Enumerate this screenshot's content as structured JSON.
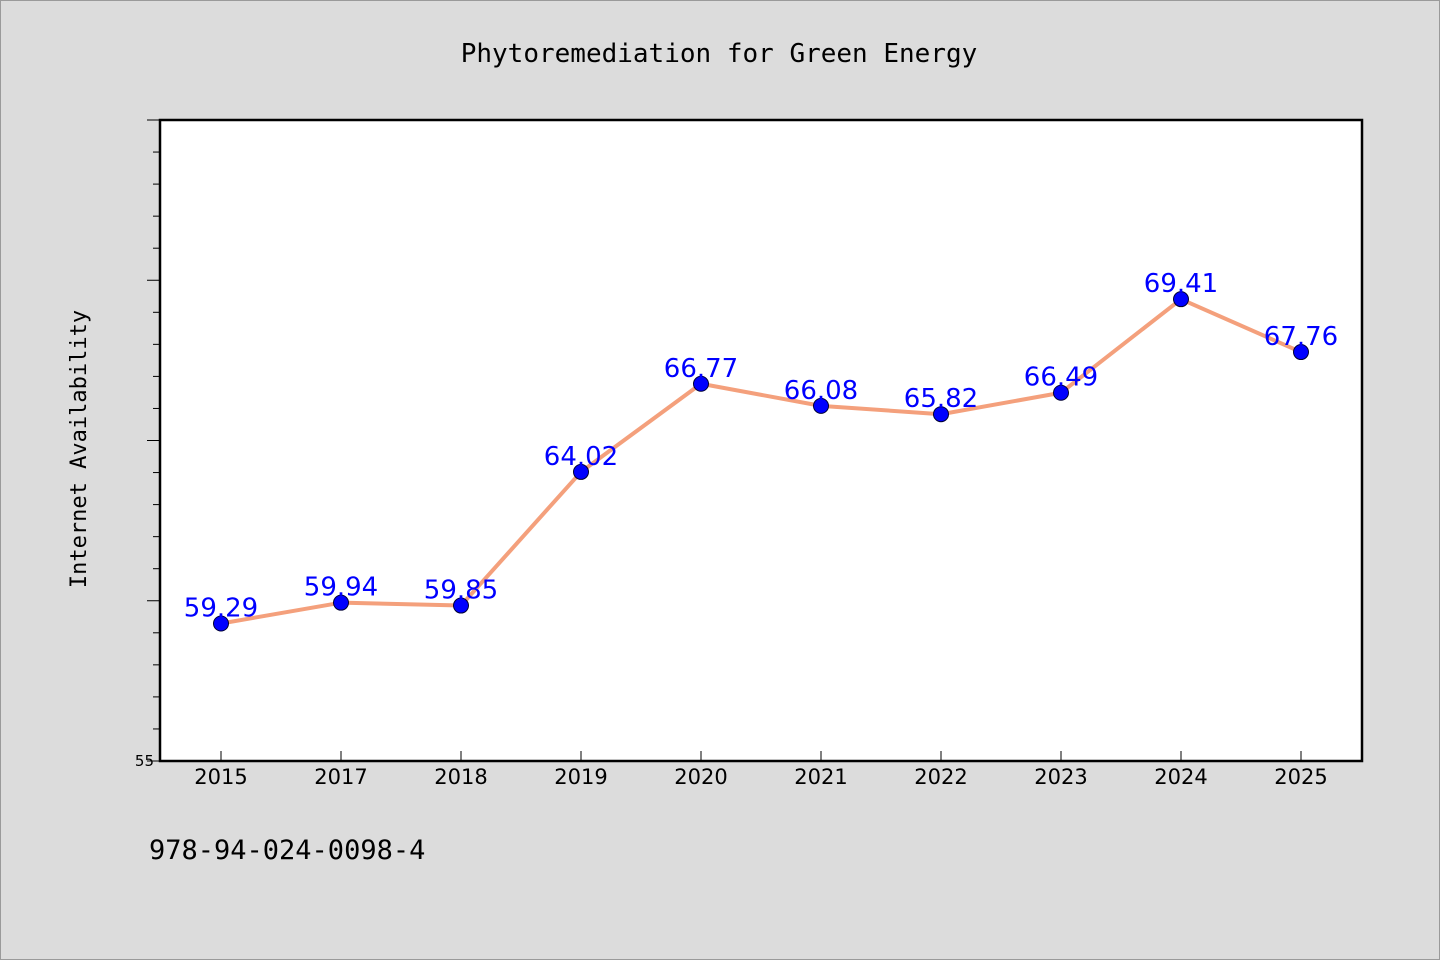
{
  "chart_data": {
    "type": "line",
    "title": "Phytoremediation for Green Energy",
    "xlabel": "",
    "ylabel": "Internet Availability",
    "categories": [
      "2015",
      "2017",
      "2018",
      "2019",
      "2020",
      "2021",
      "2022",
      "2023",
      "2024",
      "2025"
    ],
    "series": [
      {
        "values": [
          59.29,
          59.94,
          59.85,
          64.02,
          66.77,
          66.08,
          65.82,
          66.49,
          69.41,
          67.76
        ]
      }
    ],
    "data_labels": [
      "59.29",
      "59.94",
      "59.85",
      "64.02",
      "66.77",
      "66.08",
      "65.82",
      "66.49",
      "69.41",
      "67.76"
    ],
    "ytick_labels": [
      "55"
    ],
    "ylim": [
      55,
      75
    ],
    "ytick_major_step": 5,
    "ytick_minor_step": 1,
    "grid": false,
    "line_color": "#f4a07c",
    "marker_color": "#0000ff",
    "label_color": "#0000ff",
    "plot_background": "#ffffff",
    "figure_background": "#dcdcdc"
  },
  "footer": {
    "isbn": "978-94-024-0098-4"
  }
}
